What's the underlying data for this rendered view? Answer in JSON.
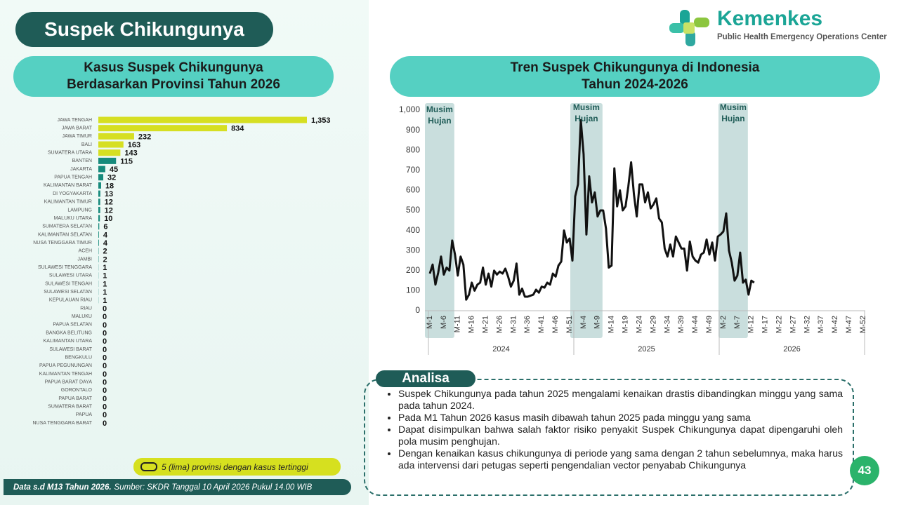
{
  "slide": {
    "title": "Suspek Chikungunya",
    "logo_name": "Kemenkes",
    "logo_subtitle": "Public Health Emergency Operations Center",
    "page_number": "43"
  },
  "chart_data": [
    {
      "type": "hbar",
      "title": "Kasus Suspek Chikungunya Berdasarkan Provinsi Tahun 2026",
      "categories": [
        "JAWA TENGAH",
        "JAWA BARAT",
        "JAWA TIMUR",
        "BALI",
        "SUMATERA UTARA",
        "BANTEN",
        "JAKARTA",
        "PAPUA TENGAH",
        "KALIMANTAN BARAT",
        "DI YOGYAKARTA",
        "KALIMANTAN TIMUR",
        "LAMPUNG",
        "MALUKU UTARA",
        "SUMATERA SELATAN",
        "KALIMANTAN SELATAN",
        "NUSA TENGGARA TIMUR",
        "ACEH",
        "JAMBI",
        "SULAWESI TENGGARA",
        "SULAWESI UTARA",
        "SULAWESI TENGAH",
        "SULAWESI SELATAN",
        "KEPULAUAN RIAU",
        "RIAU",
        "MALUKU",
        "PAPUA SELATAN",
        "BANGKA BELITUNG",
        "KALIMANTAN UTARA",
        "SULAWESI BARAT",
        "BENGKULU",
        "PAPUA PEGUNUNGAN",
        "KALIMANTAN TENGAH",
        "PAPUA BARAT DAYA",
        "GORONTALO",
        "PAPUA BARAT",
        "SUMATERA BARAT",
        "PAPUA",
        "NUSA TENGGARA BARAT"
      ],
      "values": [
        1353,
        834,
        232,
        163,
        143,
        115,
        45,
        32,
        18,
        13,
        12,
        12,
        10,
        6,
        4,
        4,
        2,
        2,
        1,
        1,
        1,
        1,
        1,
        0,
        0,
        0,
        0,
        0,
        0,
        0,
        0,
        0,
        0,
        0,
        0,
        0,
        0,
        0
      ],
      "value_labels": [
        "1,353",
        "834",
        "232",
        "163",
        "143",
        "115",
        "45",
        "32",
        "18",
        "13",
        "12",
        "12",
        "10",
        "6",
        "4",
        "4",
        "2",
        "2",
        "1",
        "1",
        "1",
        "1",
        "1",
        "0",
        "0",
        "0",
        "0",
        "0",
        "0",
        "0",
        "0",
        "0",
        "0",
        "0",
        "0",
        "0",
        "0",
        "0"
      ],
      "colors": [
        "#d6df22",
        "#d6df22",
        "#d6df22",
        "#d6df22",
        "#d6df22",
        "#178a7c",
        "#178a7c",
        "#178a7c",
        "#178a7c",
        "#178a7c",
        "#178a7c",
        "#178a7c",
        "#178a7c",
        "#178a7c",
        "#178a7c",
        "#178a7c",
        "#178a7c",
        "#178a7c",
        "#178a7c",
        "#178a7c",
        "#178a7c",
        "#178a7c",
        "#178a7c",
        "#178a7c",
        "#178a7c",
        "#178a7c",
        "#178a7c",
        "#178a7c",
        "#178a7c",
        "#178a7c",
        "#178a7c",
        "#178a7c",
        "#178a7c",
        "#178a7c",
        "#178a7c",
        "#178a7c",
        "#178a7c",
        "#178a7c"
      ],
      "note": "5 (lima) provinsi dengan kasus tertinggi"
    },
    {
      "type": "line",
      "title": "Tren Suspek Chikungunya di Indonesia Tahun 2024-2026",
      "categories": [
        "M-1",
        null,
        null,
        null,
        null,
        "M-6",
        null,
        null,
        null,
        null,
        "M-11",
        null,
        null,
        null,
        null,
        "M-16",
        null,
        null,
        null,
        null,
        "M-21",
        null,
        null,
        null,
        null,
        "M-26",
        null,
        null,
        null,
        null,
        "M-31",
        null,
        null,
        null,
        null,
        "M-36",
        null,
        null,
        null,
        null,
        "M-41",
        null,
        null,
        null,
        null,
        "M-46",
        null,
        null,
        null,
        null,
        "M-51",
        null,
        null,
        null,
        null,
        "M-4",
        null,
        null,
        null,
        null,
        "M-9",
        null,
        null,
        null,
        null,
        "M-14",
        null,
        null,
        null,
        null,
        "M-19",
        null,
        null,
        null,
        null,
        "M-24",
        null,
        null,
        null,
        null,
        "M-29",
        null,
        null,
        null,
        null,
        "M-34",
        null,
        null,
        null,
        null,
        "M-39",
        null,
        null,
        null,
        null,
        "M-44",
        null,
        null,
        null,
        null,
        "M-49",
        null,
        null,
        null,
        null,
        "M-2",
        null,
        null,
        null,
        null,
        "M-7",
        null,
        null,
        null,
        null,
        "M-12",
        null,
        null,
        null,
        null,
        "M-17",
        null,
        null,
        null,
        null,
        "M-22",
        null,
        null,
        null,
        null,
        "M-27",
        null,
        null,
        null,
        null,
        "M-32",
        null,
        null,
        null,
        null,
        "M-37",
        null,
        null,
        null,
        null,
        "M-42",
        null,
        null,
        null,
        null,
        "M-47",
        null,
        null,
        null,
        null,
        "M-52"
      ],
      "groups": [
        "2024",
        "2025",
        "2026"
      ],
      "values": [
        185,
        230,
        130,
        190,
        270,
        180,
        215,
        200,
        350,
        280,
        175,
        270,
        230,
        55,
        80,
        140,
        100,
        130,
        140,
        215,
        130,
        185,
        120,
        200,
        180,
        195,
        185,
        210,
        170,
        120,
        150,
        235,
        80,
        110,
        70,
        70,
        75,
        80,
        105,
        90,
        120,
        115,
        140,
        130,
        185,
        170,
        225,
        245,
        400,
        340,
        360,
        250,
        570,
        630,
        950,
        780,
        380,
        670,
        540,
        590,
        470,
        500,
        500,
        410,
        215,
        225,
        710,
        520,
        600,
        500,
        520,
        620,
        740,
        580,
        470,
        630,
        630,
        540,
        590,
        510,
        530,
        560,
        460,
        440,
        310,
        270,
        330,
        270,
        370,
        340,
        310,
        310,
        200,
        345,
        270,
        250,
        240,
        280,
        290,
        355,
        280,
        340,
        250,
        370,
        380,
        395,
        485,
        300,
        240,
        150,
        175,
        290,
        140,
        155,
        80,
        150,
        140,
        null,
        null,
        null,
        null,
        null,
        null,
        null,
        null,
        null,
        null,
        null,
        null,
        null,
        null,
        null,
        null,
        null,
        null,
        null,
        null,
        null,
        null,
        null,
        null,
        null,
        null,
        null,
        null,
        null,
        null,
        null,
        null,
        null,
        null,
        null,
        null,
        null,
        null,
        null
      ],
      "color": "#111111",
      "ylim": [
        0,
        1000
      ],
      "yticks": [
        0,
        100,
        200,
        300,
        400,
        500,
        600,
        700,
        800,
        900,
        {
          "value": 1000,
          "label": "1,000"
        }
      ],
      "bands": [
        {
          "label": "Musim Hujan",
          "start": 0,
          "end": 7
        },
        {
          "label": "Musim Hujan",
          "start": 52,
          "end": 60
        },
        {
          "label": "Musim Hujan",
          "start": 105,
          "end": 112
        }
      ],
      "band_color": "#c9dedd"
    }
  ],
  "analysis": {
    "title": "Analisa",
    "bullets": [
      "Suspek Chikungunya pada tahun 2025 mengalami kenaikan drastis dibandingkan minggu yang sama pada tahun 2024.",
      "Pada M1 Tahun 2026 kasus masih dibawah tahun 2025 pada minggu yang sama",
      "Dapat disimpulkan bahwa salah faktor risiko penyakit Suspek Chikungunya dapat dipengaruhi oleh pola musim penghujan.",
      "Dengan kenaikan kasus chikungunya di periode yang sama dengan 2 tahun sebelumnya, maka harus ada intervensi dari petugas seperti pengendalian vector penyabab Chikungunya"
    ]
  },
  "footer": {
    "data_note": "Data s.d M13 Tahun 2026.",
    "source": "Sumber: SKDR Tanggal 10 April 2026 Pukul 14.00 WIB"
  }
}
